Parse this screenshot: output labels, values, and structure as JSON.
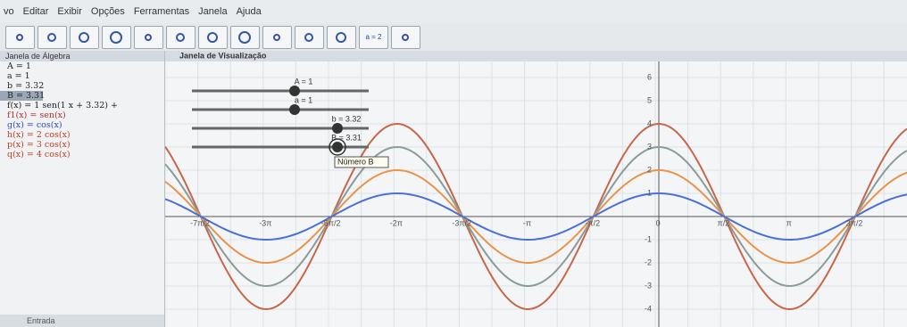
{
  "menu": [
    "vo",
    "Editar",
    "Exibir",
    "Opções",
    "Ferramentas",
    "Janela",
    "Ajuda"
  ],
  "toolbar": {
    "slider_button": "a = 2"
  },
  "algebra": {
    "title": "Janela de Álgebra",
    "entries": [
      "A = 1",
      "a = 1",
      "b = 3.32",
      "B = 3.31",
      "f(x) = 1 sen(1 x + 3.32) +",
      "f1(x) = sen(x)",
      "g(x) = cos(x)",
      "h(x) = 2 cos(x)",
      "p(x) = 3 cos(x)",
      "q(x) = 4 cos(x)"
    ],
    "input": "Entrada"
  },
  "graphics": {
    "title": "Janela de Visualização",
    "x_labels": [
      "-7π/2",
      "-3π",
      "-5π/2",
      "-2π",
      "-3π/2",
      "-π",
      "-π/2",
      "0",
      "π/2",
      "π",
      "3π/2"
    ],
    "y_labels": [
      "6",
      "5",
      "4",
      "3",
      "2",
      "1",
      "-1",
      "-2",
      "-3",
      "-4"
    ],
    "sliders": [
      "A = 1",
      "a = 1",
      "b = 3.32",
      "B = 3.31"
    ],
    "tooltip": "Número B"
  }
}
